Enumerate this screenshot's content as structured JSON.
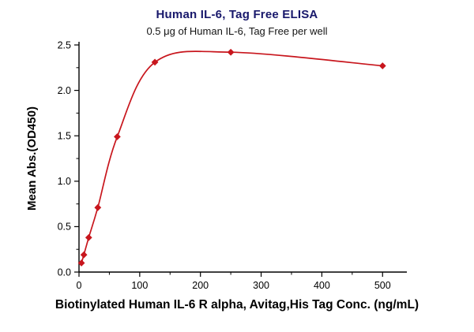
{
  "chart_data": {
    "type": "line",
    "title": "Human IL-6, Tag Free ELISA",
    "subtitle": "0.5 μg of Human IL-6, Tag Free per well",
    "xlabel": "Biotinylated Human IL-6 R alpha, Avitag,His Tag Conc. (ng/mL)",
    "ylabel": "Mean Abs.(OD450)",
    "x": [
      4,
      8,
      16,
      31,
      63,
      125,
      250,
      500
    ],
    "y": [
      0.1,
      0.19,
      0.38,
      0.71,
      1.49,
      2.31,
      2.42,
      2.27
    ],
    "xlim": [
      0,
      540
    ],
    "ylim": [
      0,
      2.5
    ],
    "xticks": [
      0,
      100,
      200,
      300,
      400,
      500
    ],
    "yticks": [
      "0.0",
      "0.5",
      "1.0",
      "1.5",
      "2.0",
      "2.5"
    ],
    "marker": "diamond",
    "line_color": "#c8161d",
    "grid": false,
    "legend": "none"
  }
}
